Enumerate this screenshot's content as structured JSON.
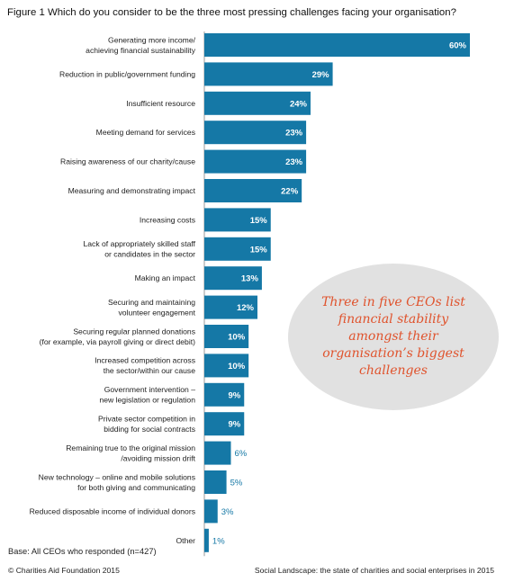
{
  "title": "Figure 1  Which do you consider to be the three most pressing challenges facing your organisation?",
  "callout": "Three in five CEOs list financial stability amongst their organisation’s biggest challenges",
  "base_note": "Base: All CEOs who responded (n=427)",
  "footer": {
    "left": "© Charities Aid Foundation 2015",
    "right": "Social Landscape: the state of charities and social enterprises in 2015"
  },
  "colors": {
    "bar": "#1578a6",
    "callout_text": "#e0532d",
    "callout_bg": "#e1e1e1"
  },
  "chart_data": {
    "type": "bar",
    "orientation": "horizontal",
    "title": "Which do you consider to be the three most pressing challenges facing your organisation?",
    "unit": "%",
    "categories": [
      [
        "Generating more income/",
        "achieving financial sustainability"
      ],
      [
        "Reduction in public/government funding"
      ],
      [
        "Insufficient resource"
      ],
      [
        "Meeting demand for services"
      ],
      [
        "Raising awareness of our charity/cause"
      ],
      [
        "Measuring and demonstrating impact"
      ],
      [
        "Increasing costs"
      ],
      [
        "Lack of appropriately skilled staff",
        "or candidates in the sector"
      ],
      [
        "Making an impact"
      ],
      [
        "Securing and maintaining",
        "volunteer engagement"
      ],
      [
        "Securing regular planned donations",
        "(for example, via payroll giving or direct debit)"
      ],
      [
        "Increased competition across",
        "the sector/within our cause"
      ],
      [
        "Government intervention –",
        "new legislation or regulation"
      ],
      [
        "Private sector competition in",
        "bidding for social contracts"
      ],
      [
        "Remaining true to the original mission",
        "/avoiding mission drift"
      ],
      [
        "New technology – online and mobile solutions",
        "for both giving and communicating"
      ],
      [
        "Reduced disposable income of individual donors"
      ],
      [
        "Other"
      ]
    ],
    "values": [
      60,
      29,
      24,
      23,
      23,
      22,
      15,
      15,
      13,
      12,
      10,
      10,
      9,
      9,
      6,
      5,
      3,
      1
    ],
    "value_labels": [
      "60%",
      "29%",
      "24%",
      "23%",
      "23%",
      "22%",
      "15%",
      "15%",
      "13%",
      "12%",
      "10%",
      "10%",
      "9%",
      "9%",
      "6%",
      "5%",
      "3%",
      "1%"
    ]
  }
}
